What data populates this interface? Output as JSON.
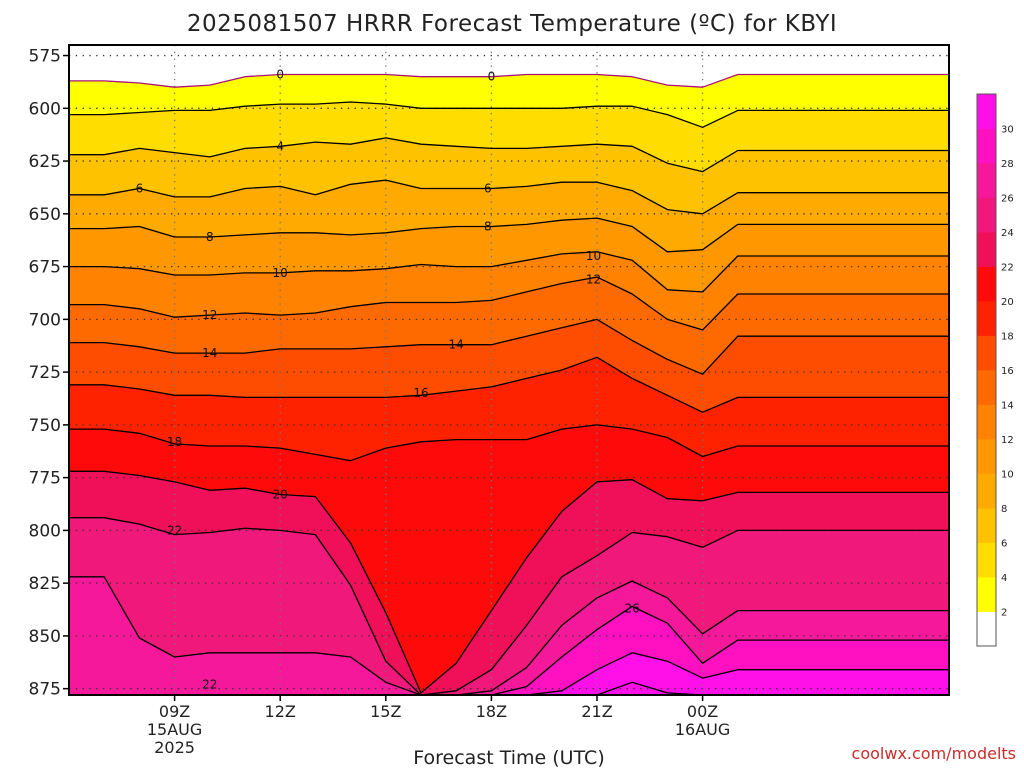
{
  "title": "2025081507 HRRR Forecast Temperature (ºC) for KBYI",
  "credit": "coolwx.com/modelts",
  "credit_color": "#cc2a2a",
  "chart_data": {
    "type": "contour",
    "xlabel": "Forecast Time (UTC)",
    "ylabel": "",
    "x_range_hours_utc": [
      6,
      31
    ],
    "y_range_hpa": [
      570,
      878
    ],
    "y_inverted": true,
    "grid": "dotted",
    "x_ticks": [
      {
        "hour": 9,
        "lines": [
          "09Z",
          "15AUG",
          "2025"
        ]
      },
      {
        "hour": 12,
        "lines": [
          "12Z"
        ]
      },
      {
        "hour": 15,
        "lines": [
          "15Z"
        ]
      },
      {
        "hour": 18,
        "lines": [
          "18Z"
        ]
      },
      {
        "hour": 21,
        "lines": [
          "21Z"
        ]
      },
      {
        "hour": 24,
        "lines": [
          "00Z",
          "16AUG"
        ]
      }
    ],
    "y_ticks": [
      575,
      600,
      625,
      650,
      675,
      700,
      725,
      750,
      775,
      800,
      825,
      850,
      875
    ],
    "y_tick_labels": [
      "575",
      "600",
      "625",
      "650",
      "675",
      "700",
      "725",
      "750",
      "775",
      "800",
      "825",
      "850",
      "875"
    ],
    "x_times": [
      6,
      7,
      8,
      9,
      10,
      11,
      12,
      13,
      14,
      15,
      16,
      17,
      18,
      19,
      20,
      21,
      22,
      23,
      24,
      25
    ],
    "isotherms": [
      {
        "temp": 0,
        "label": "0",
        "color": "#aa1177",
        "pressure": [
          587,
          587,
          588,
          590,
          589,
          585,
          584,
          584,
          584,
          584,
          585,
          585,
          585,
          584,
          584,
          584,
          585,
          589,
          590,
          584
        ]
      },
      {
        "temp": 2,
        "pressure": [
          603,
          603,
          602,
          601,
          601,
          599,
          598,
          598,
          597,
          598,
          600,
          600,
          600,
          600,
          600,
          599,
          599,
          603,
          609,
          601
        ]
      },
      {
        "temp": 4,
        "label": "4",
        "pressure": [
          622,
          622,
          619,
          621,
          623,
          619,
          618,
          616,
          617,
          614,
          617,
          618,
          619,
          619,
          618,
          617,
          618,
          626,
          630,
          620
        ]
      },
      {
        "temp": 6,
        "label": "6",
        "pressure": [
          641,
          641,
          638,
          642,
          642,
          638,
          637,
          641,
          636,
          634,
          638,
          638,
          638,
          637,
          635,
          635,
          639,
          648,
          650,
          640
        ]
      },
      {
        "temp": 8,
        "label": "8",
        "pressure": [
          657,
          657,
          656,
          661,
          661,
          660,
          659,
          659,
          660,
          659,
          657,
          656,
          656,
          655,
          653,
          652,
          656,
          668,
          667,
          655
        ]
      },
      {
        "temp": 10,
        "label": "10",
        "pressure": [
          675,
          675,
          676,
          679,
          679,
          678,
          678,
          677,
          677,
          676,
          674,
          675,
          675,
          672,
          669,
          668,
          672,
          686,
          687,
          670
        ]
      },
      {
        "temp": 12,
        "label": "12",
        "pressure": [
          693,
          693,
          695,
          699,
          698,
          697,
          698,
          697,
          694,
          692,
          692,
          692,
          691,
          687,
          683,
          680,
          688,
          700,
          705,
          688
        ]
      },
      {
        "temp": 14,
        "label": "14",
        "pressure": [
          711,
          711,
          713,
          716,
          716,
          716,
          714,
          714,
          714,
          713,
          712,
          712,
          712,
          708,
          704,
          700,
          710,
          719,
          726,
          708
        ]
      },
      {
        "temp": 16,
        "label": "16",
        "pressure": [
          731,
          731,
          733,
          736,
          736,
          737,
          737,
          737,
          737,
          737,
          736,
          734,
          732,
          728,
          724,
          718,
          728,
          736,
          744,
          737
        ]
      },
      {
        "temp": 18,
        "label": "18",
        "pressure": [
          752,
          752,
          754,
          759,
          760,
          760,
          761,
          764,
          767,
          761,
          758,
          757,
          757,
          757,
          752,
          750,
          752,
          756,
          765,
          760
        ]
      },
      {
        "temp": 20,
        "label": "20",
        "pressure": [
          772,
          772,
          774,
          777,
          781,
          780,
          783,
          784,
          806,
          839,
          877,
          863,
          838,
          813,
          791,
          777,
          776,
          785,
          786,
          782
        ]
      },
      {
        "temp": 22,
        "label": "22",
        "pressure": [
          794,
          794,
          797,
          802,
          801,
          799,
          800,
          802,
          826,
          862,
          878,
          876,
          866,
          845,
          822,
          812,
          801,
          803,
          808,
          800
        ]
      },
      {
        "temp": 24,
        "pressure": [
          822,
          822,
          851,
          860,
          858,
          858,
          858,
          858,
          860,
          872,
          878,
          878,
          876,
          865,
          845,
          832,
          824,
          832,
          849,
          838
        ]
      },
      {
        "temp": 26,
        "label": "26",
        "pressure": [
          878,
          878,
          878,
          878,
          878,
          878,
          878,
          878,
          878,
          878,
          878,
          878,
          878,
          874,
          860,
          847,
          836,
          844,
          863,
          852
        ]
      },
      {
        "temp": 28,
        "pressure": [
          878,
          878,
          878,
          878,
          878,
          878,
          878,
          878,
          878,
          878,
          878,
          878,
          878,
          878,
          876,
          866,
          858,
          862,
          870,
          866
        ]
      },
      {
        "temp": 30,
        "pressure": [
          878,
          878,
          878,
          878,
          878,
          878,
          878,
          878,
          878,
          878,
          878,
          878,
          878,
          878,
          878,
          878,
          872,
          877,
          878,
          878
        ]
      }
    ],
    "contour_labels": [
      {
        "temp": 0,
        "hour": 12.0,
        "pressure": 584
      },
      {
        "temp": 0,
        "hour": 18.0,
        "pressure": 585
      },
      {
        "temp": 4,
        "hour": 12.0,
        "pressure": 618
      },
      {
        "temp": 6,
        "hour": 8.0,
        "pressure": 638
      },
      {
        "temp": 6,
        "hour": 17.9,
        "pressure": 638
      },
      {
        "temp": 8,
        "hour": 10.0,
        "pressure": 661
      },
      {
        "temp": 8,
        "hour": 17.9,
        "pressure": 656
      },
      {
        "temp": 10,
        "hour": 12.0,
        "pressure": 678
      },
      {
        "temp": 10,
        "hour": 20.9,
        "pressure": 670
      },
      {
        "temp": 12,
        "hour": 10.0,
        "pressure": 698
      },
      {
        "temp": 12,
        "hour": 20.9,
        "pressure": 681
      },
      {
        "temp": 14,
        "hour": 10.0,
        "pressure": 716
      },
      {
        "temp": 14,
        "hour": 17.0,
        "pressure": 712
      },
      {
        "temp": 16,
        "hour": 16.0,
        "pressure": 735
      },
      {
        "temp": 18,
        "hour": 9.0,
        "pressure": 758
      },
      {
        "temp": 20,
        "hour": 12.0,
        "pressure": 783
      },
      {
        "temp": 22,
        "hour": 9.0,
        "pressure": 800
      },
      {
        "temp": 22,
        "hour": 10.0,
        "pressure": 873
      },
      {
        "temp": 26,
        "hour": 22.0,
        "pressure": 837
      }
    ],
    "fill_colors": [
      "#ffffff",
      "#ffff00",
      "#ffdd00",
      "#ffc200",
      "#ffaa00",
      "#ff9800",
      "#ff8200",
      "#ff6a00",
      "#ff4d00",
      "#ff2200",
      "#ff0a0a",
      "#f0105a",
      "#f0187a",
      "#f5189a",
      "#ff10c0",
      "#ff10e8"
    ],
    "colorbar": {
      "ticks": [
        2,
        4,
        6,
        8,
        10,
        12,
        14,
        16,
        18,
        20,
        22,
        24,
        26,
        28,
        30
      ],
      "tick_labels": [
        "2",
        "4",
        "6",
        "8",
        "10",
        "12",
        "14",
        "16",
        "18",
        "20",
        "22",
        "24",
        "26",
        "28",
        "30"
      ]
    },
    "ground_color": "#a0522d"
  }
}
